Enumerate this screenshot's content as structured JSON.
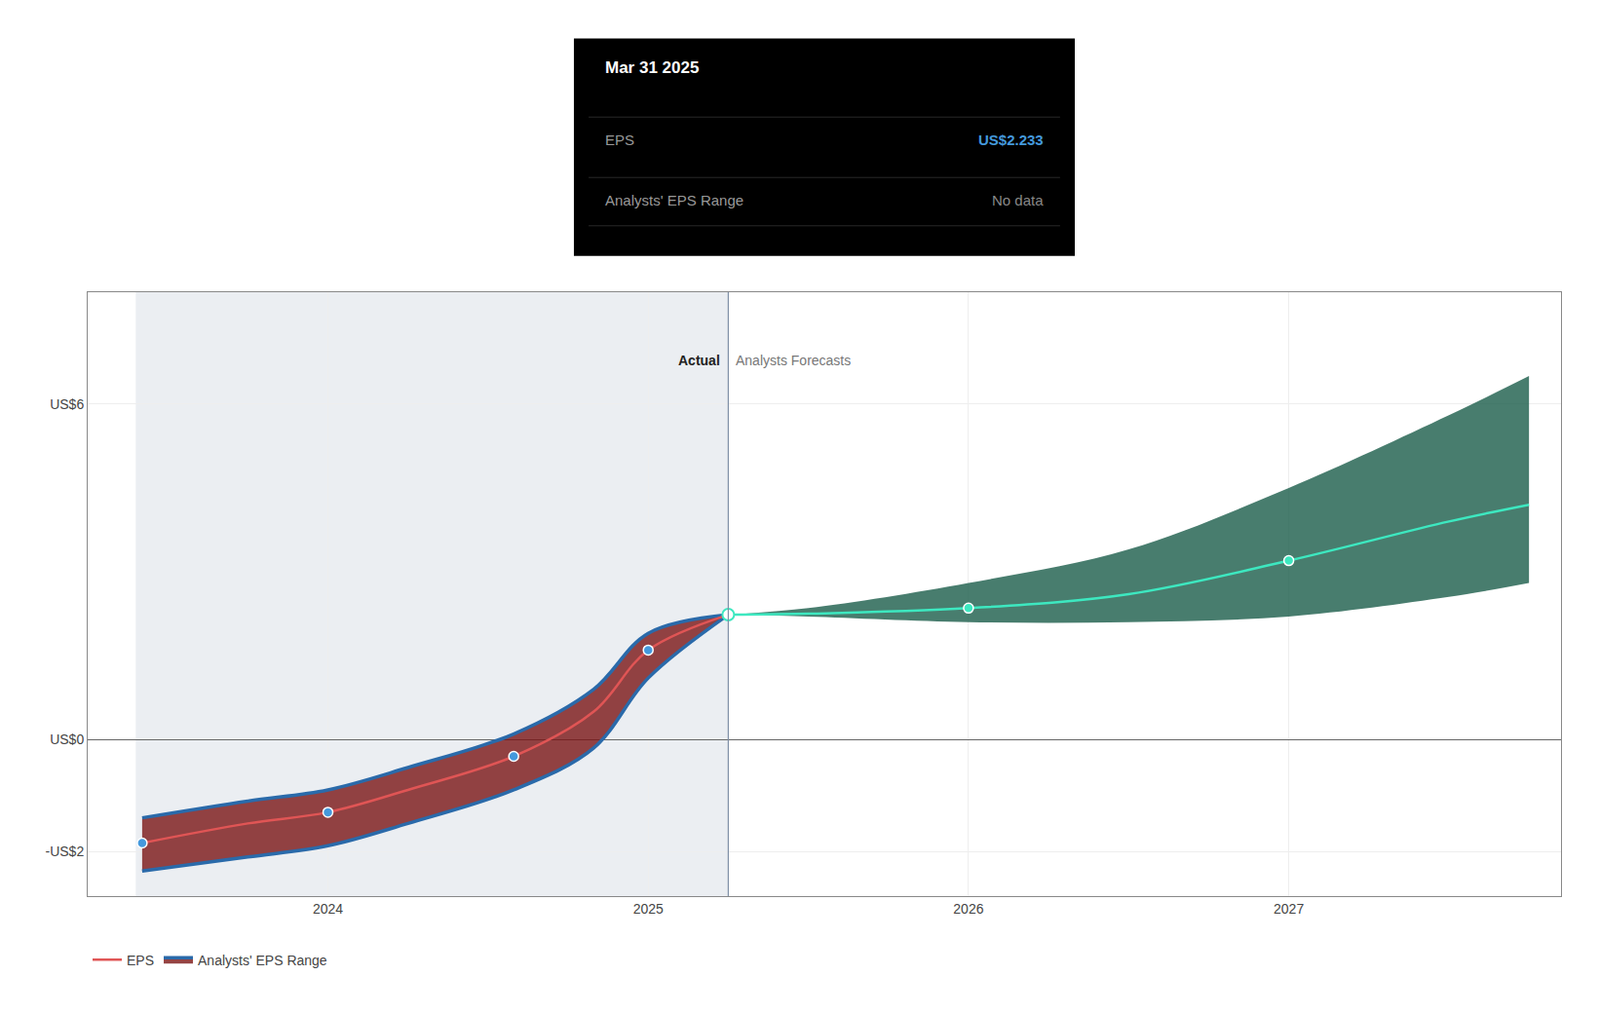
{
  "chart_data": {
    "type": "line",
    "xlim": [
      2023.25,
      2027.85
    ],
    "xticks": [
      2024,
      2025,
      2026,
      2027
    ],
    "ylim": [
      -2.8,
      8.0
    ],
    "yticks": [
      {
        "value": -2,
        "label": "-US$2"
      },
      {
        "value": 0,
        "label": "US$0"
      },
      {
        "value": 6,
        "label": "US$6"
      }
    ],
    "grid": true,
    "legend": "bottom left",
    "series": [
      {
        "name": "Analysts' EPS Range",
        "type": "band",
        "color": "#7a1515",
        "line_color": "#2a6aaa",
        "x": [
          2023.42,
          2023.75,
          2024.0,
          2024.25,
          2024.58,
          2024.83,
          2025.0,
          2025.25
        ],
        "upper": [
          -1.4,
          -1.1,
          -0.9,
          -0.5,
          0.1,
          0.9,
          1.9,
          2.233
        ],
        "lower": [
          -2.35,
          -2.1,
          -1.9,
          -1.5,
          -0.9,
          -0.15,
          1.1,
          2.233
        ]
      },
      {
        "name": "Analysts' EPS Range",
        "type": "band",
        "color": "#1a5c4a",
        "x": [
          2025.25,
          2025.5,
          2026.0,
          2026.5,
          2027.0,
          2027.5,
          2027.75
        ],
        "upper": [
          2.233,
          2.35,
          2.8,
          3.4,
          4.5,
          5.8,
          6.5
        ],
        "lower": [
          2.233,
          2.2,
          2.1,
          2.1,
          2.2,
          2.55,
          2.8
        ]
      },
      {
        "name": "EPS",
        "type": "line",
        "color": "#e05555",
        "marker_color": "#4499dd",
        "x": [
          2023.42,
          2023.75,
          2024.0,
          2024.25,
          2024.58,
          2024.83,
          2025.0,
          2025.25
        ],
        "values": [
          -1.85,
          -1.5,
          -1.3,
          -0.9,
          -0.3,
          0.5,
          1.6,
          2.233
        ],
        "markers": {
          "x": [
            2023.42,
            2024.0,
            2024.58,
            2025.0
          ],
          "values": [
            -1.85,
            -1.3,
            -0.3,
            1.6
          ]
        }
      },
      {
        "name": "EPS",
        "type": "line",
        "color": "#3de8c0",
        "marker_color": "#3de8c0",
        "x": [
          2025.25,
          2025.5,
          2026.0,
          2026.5,
          2027.0,
          2027.5,
          2027.75
        ],
        "values": [
          2.233,
          2.25,
          2.35,
          2.6,
          3.2,
          3.9,
          4.2
        ],
        "markers": {
          "x": [
            2025.25,
            2026.0,
            2027.0
          ],
          "values": [
            2.233,
            2.35,
            3.2
          ]
        }
      }
    ],
    "shaded_x": [
      2023.4,
      2025.25
    ],
    "divider_x": 2025.25,
    "annotations": [
      {
        "text": "Actual",
        "x": 2025.25,
        "y": 6.6
      },
      {
        "text": "Analysts Forecasts",
        "x": 2025.25,
        "y": 6.6
      }
    ],
    "transition_point": {
      "x": 2025.25,
      "y": 2.233,
      "color": "#3de8c0"
    },
    "tooltip": {
      "title": "Mar 31 2025",
      "rows": [
        {
          "label": "EPS",
          "value": "US$2.233",
          "color": "#4499dd"
        },
        {
          "label": "Analysts' EPS Range",
          "value": "No data",
          "color": "#888888"
        }
      ]
    }
  }
}
